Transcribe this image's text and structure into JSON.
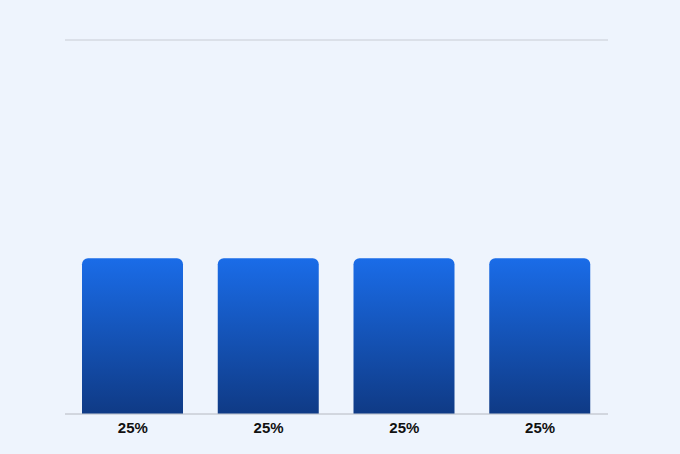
{
  "chart_data": {
    "type": "bar",
    "categories": [
      "25%",
      "25%",
      "25%",
      "25%"
    ],
    "values": [
      25,
      25,
      25,
      25
    ],
    "color": "#1a6ce8",
    "ylim": [
      0,
      60
    ],
    "yticks": [
      0,
      10,
      20,
      30,
      40,
      50,
      60
    ],
    "grid": true,
    "tick_labels": "x"
  }
}
